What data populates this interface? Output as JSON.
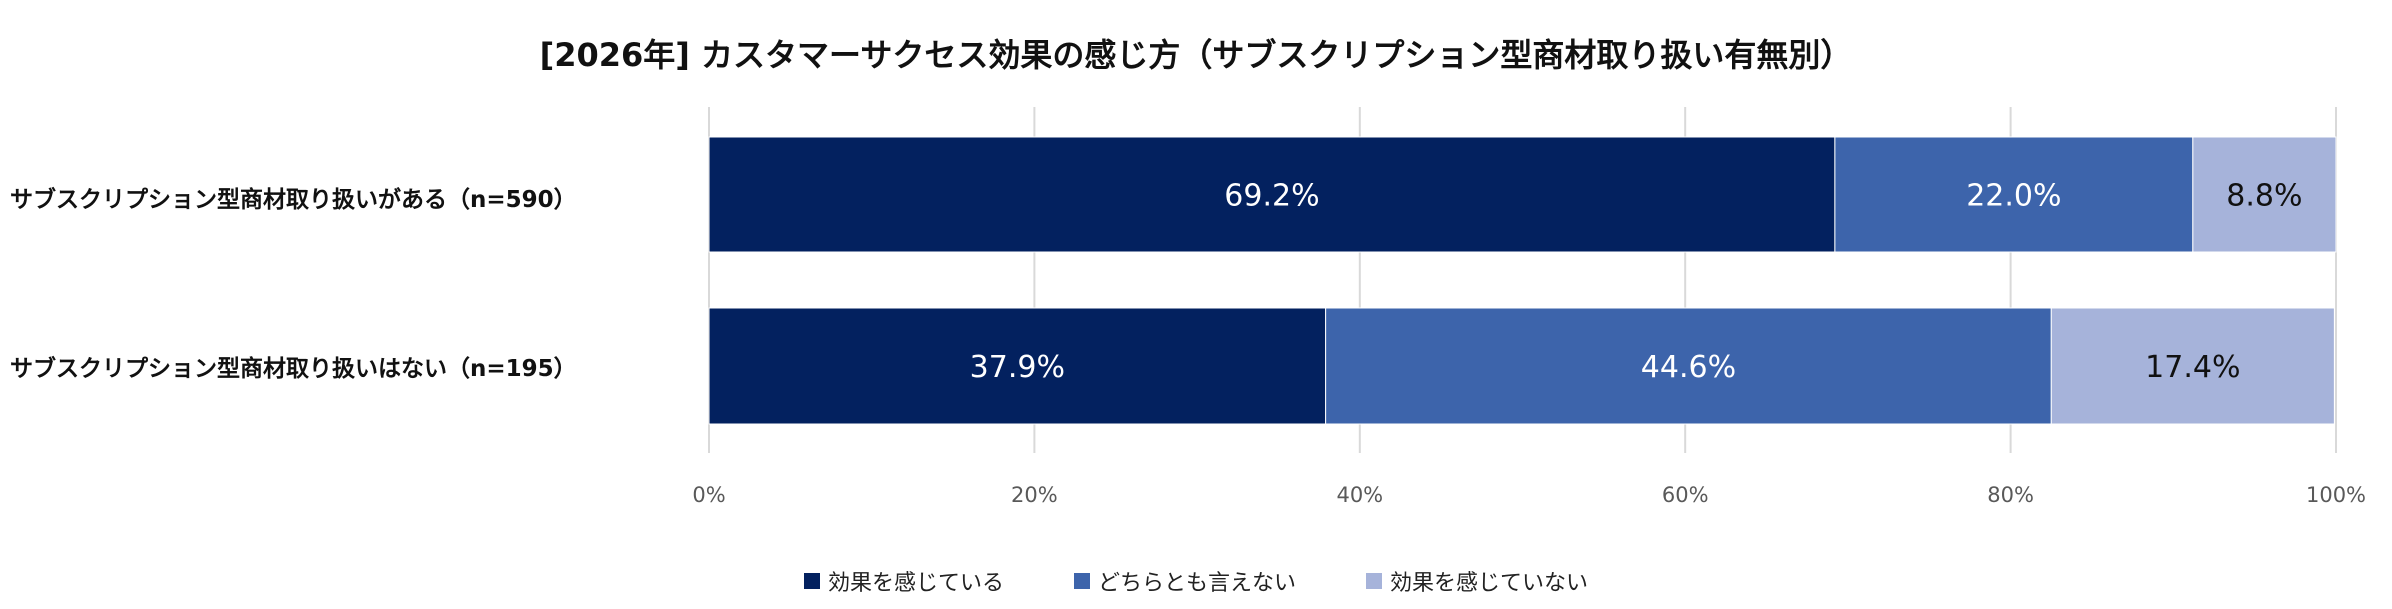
{
  "chart_data": {
    "type": "bar",
    "orientation": "horizontal",
    "stacked": true,
    "title": "[2026年] カスタマーサクセス効果の感じ方（サブスクリプション型商材取り扱い有無別）",
    "categories": [
      "サブスクリプション型商材取り扱いがある（n=590）",
      "サブスクリプション型商材取り扱いはない（n=195）"
    ],
    "series": [
      {
        "name": "効果を感じている",
        "values": [
          69.2,
          37.9
        ],
        "labels": [
          "69.2%",
          "37.9%"
        ],
        "color": "#03215f",
        "label_color": "#ffffff"
      },
      {
        "name": "どちらとも言えない",
        "values": [
          22.0,
          44.6
        ],
        "labels": [
          "22.0%",
          "44.6%"
        ],
        "color": "#3d64ab",
        "label_color": "#ffffff"
      },
      {
        "name": "効果を感じていない",
        "values": [
          8.8,
          17.4
        ],
        "labels": [
          "8.8%",
          "17.4%"
        ],
        "color": "#a6b3da",
        "label_color": "#111111"
      }
    ],
    "xlim": [
      0,
      100
    ],
    "xticks": [
      "0%",
      "20%",
      "40%",
      "60%",
      "80%",
      "100%"
    ],
    "grid": true,
    "legend_position": "bottom"
  }
}
